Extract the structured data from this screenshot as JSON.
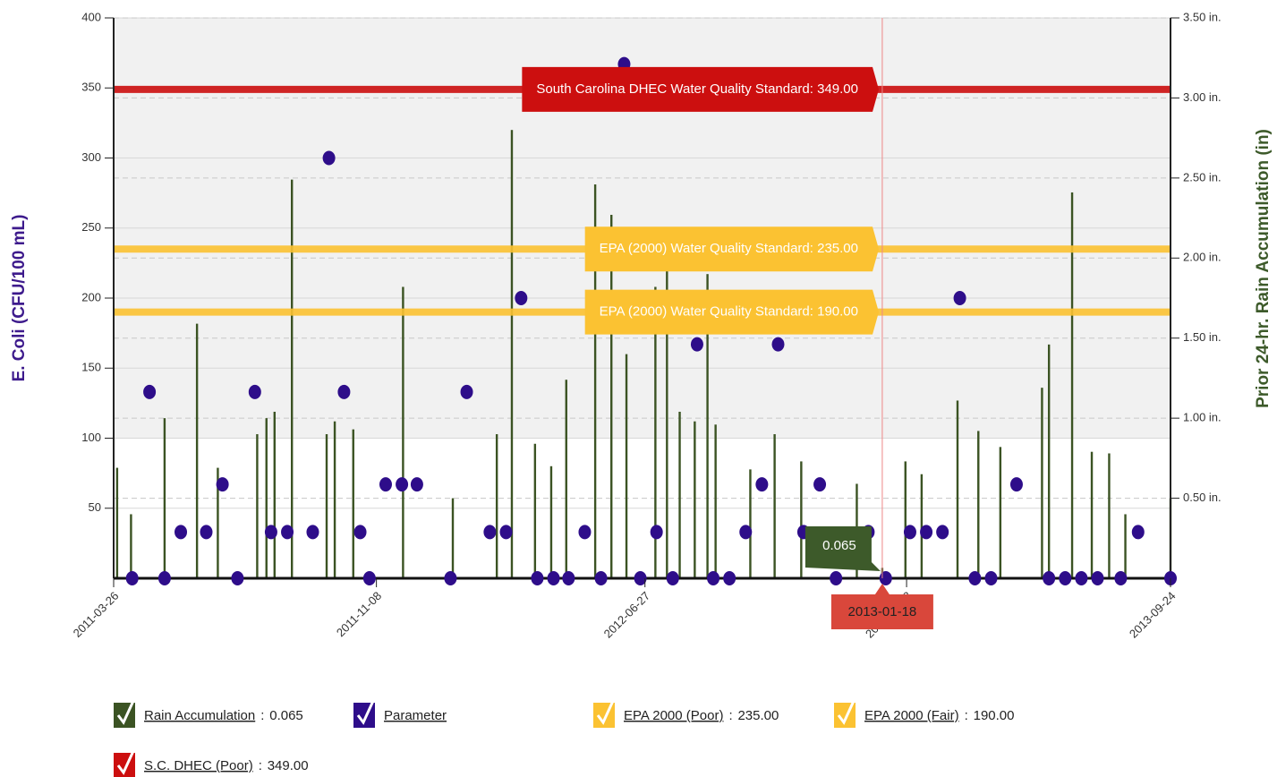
{
  "chart_data": {
    "type": "combo",
    "yaxis_title": "E. Coli (CFU/100 mL)",
    "y2axis_title": "Prior 24-hr. Rain Accumulation (in)",
    "xlim": [
      "2011-03-26",
      "2013-09-24"
    ],
    "xticks": [
      "2011-03-26",
      "2011-11-08",
      "2012-06-27",
      "2013-02-08",
      "2013-09-24"
    ],
    "ylim": [
      0,
      400
    ],
    "yticks": [
      50,
      100,
      150,
      200,
      250,
      300,
      350,
      400
    ],
    "y2lim": [
      0,
      3.5
    ],
    "y2ticks": [
      {
        "value": 0.5,
        "label": "0.50 in."
      },
      {
        "value": 1,
        "label": "1.00 in."
      },
      {
        "value": 1.5,
        "label": "1.50 in."
      },
      {
        "value": 2,
        "label": "2.00 in."
      },
      {
        "value": 2.5,
        "label": "2.50 in."
      },
      {
        "value": 3,
        "label": "3.00 in."
      },
      {
        "value": 3.5,
        "label": "3.50 in."
      }
    ],
    "grid": true,
    "series": [
      {
        "name": "Rain Accumulation",
        "type": "bar",
        "axis": "y2",
        "color": "#3b5323",
        "x": [
          "2011-03-29",
          "2011-04-10",
          "2011-05-09",
          "2011-06-06",
          "2011-06-24",
          "2011-07-28",
          "2011-08-05",
          "2011-08-12",
          "2011-08-27",
          "2011-09-26",
          "2011-10-03",
          "2011-10-19",
          "2011-12-01",
          "2012-01-13",
          "2012-02-20",
          "2012-03-04",
          "2012-03-24",
          "2012-04-07",
          "2012-04-20",
          "2012-05-15",
          "2012-05-29",
          "2012-06-11",
          "2012-07-06",
          "2012-07-16",
          "2012-07-27",
          "2012-08-09",
          "2012-08-20",
          "2012-08-27",
          "2012-09-26",
          "2012-10-17",
          "2012-11-09",
          "2012-12-27",
          "2013-01-18",
          "2013-02-07",
          "2013-02-21",
          "2013-03-24",
          "2013-04-11",
          "2013-04-30",
          "2013-06-05",
          "2013-06-11",
          "2013-07-01",
          "2013-07-18",
          "2013-08-02",
          "2013-08-16",
          "2013-09-24"
        ],
        "values": [
          0.69,
          0.4,
          1.0,
          1.59,
          0.69,
          0.9,
          1.0,
          1.04,
          2.49,
          0.9,
          0.98,
          0.93,
          1.82,
          0.5,
          0.9,
          2.8,
          0.84,
          0.7,
          1.24,
          2.46,
          2.27,
          1.4,
          1.82,
          1.99,
          1.04,
          0.98,
          1.9,
          0.96,
          0.68,
          0.9,
          0.73,
          0.59,
          0.065,
          0.73,
          0.65,
          1.11,
          0.92,
          0.82,
          1.19,
          1.46,
          2.41,
          0.79,
          0.78,
          0.4,
          0.5
        ]
      },
      {
        "name": "Parameter",
        "type": "scatter",
        "color": "#2e0d8a",
        "x": [
          "2011-04-11",
          "2011-04-26",
          "2011-05-09",
          "2011-05-23",
          "2011-06-14",
          "2011-06-28",
          "2011-07-11",
          "2011-07-26",
          "2011-08-09",
          "2011-08-23",
          "2011-09-14",
          "2011-09-28",
          "2011-10-11",
          "2011-10-25",
          "2011-11-02",
          "2011-11-16",
          "2011-11-30",
          "2011-12-13",
          "2012-01-11",
          "2012-01-25",
          "2012-02-14",
          "2012-02-28",
          "2012-03-12",
          "2012-03-26",
          "2012-04-09",
          "2012-04-22",
          "2012-05-06",
          "2012-05-20",
          "2012-06-09",
          "2012-06-23",
          "2012-07-07",
          "2012-07-21",
          "2012-08-11",
          "2012-08-25",
          "2012-09-08",
          "2012-09-22",
          "2012-10-06",
          "2012-10-20",
          "2012-11-11",
          "2012-11-25",
          "2012-12-09",
          "2013-01-06",
          "2013-01-21",
          "2013-02-11",
          "2013-02-25",
          "2013-03-11",
          "2013-03-26",
          "2013-04-08",
          "2013-04-22",
          "2013-05-14",
          "2013-06-11",
          "2013-06-25",
          "2013-07-09",
          "2013-07-23",
          "2013-08-12",
          "2013-08-27",
          "2013-09-24"
        ],
        "values": [
          0,
          133,
          0,
          33,
          33,
          67,
          0,
          133,
          33,
          33,
          33,
          300,
          133,
          33,
          0,
          67,
          67,
          67,
          0,
          133,
          33,
          33,
          200,
          0,
          0,
          0,
          33,
          0,
          367,
          0,
          33,
          0,
          167,
          0,
          0,
          33,
          67,
          167,
          33,
          67,
          0,
          33,
          0,
          33,
          33,
          33,
          200,
          0,
          0,
          67,
          0,
          0,
          0,
          0,
          0,
          33,
          0
        ]
      }
    ],
    "plot_lines": [
      {
        "name": "EPA 2000 (Poor)",
        "label": "EPA (2000) Water Quality Standard: 235.00",
        "value": 235,
        "value_label": "235.00",
        "color": "#fbc232"
      },
      {
        "name": "EPA 2000 (Fair)",
        "label": "EPA (2000) Water Quality Standard: 190.00",
        "value": 190,
        "value_label": "190.00",
        "color": "#fbc232"
      },
      {
        "name": "S.C. DHEC (Poor)",
        "label": "South Carolina DHEC Water Quality Standard: 349.00",
        "value": 349,
        "value_label": "349.00",
        "color": "#cc0f0f"
      }
    ],
    "tooltip": {
      "x": "2013-01-18",
      "value": 0.065
    }
  }
}
